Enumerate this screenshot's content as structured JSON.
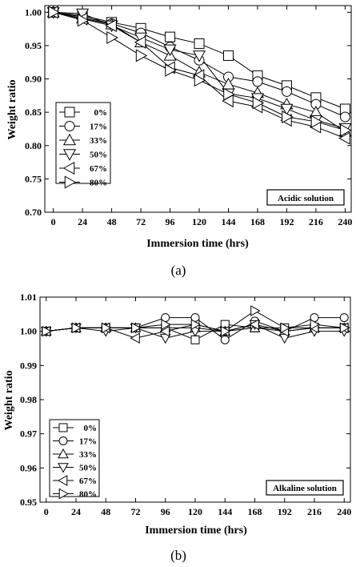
{
  "chart_data": [
    {
      "type": "line",
      "caption": "(a)",
      "xlabel": "Immersion time (hrs)",
      "ylabel": "Weight ratio",
      "annotation": "Acidic solution",
      "legend_placement": "bottom-left",
      "grid": false,
      "xlim": [
        -7,
        245
      ],
      "ylim": [
        0.7,
        1.01
      ],
      "xticks": [
        "0",
        "24",
        "48",
        "72",
        "96",
        "120",
        "144",
        "168",
        "192",
        "216",
        "240"
      ],
      "yticks": [
        "0.70",
        "0.75",
        "0.80",
        "0.85",
        "0.90",
        "0.95",
        "1.00"
      ],
      "x": [
        0,
        24,
        48,
        72,
        96,
        120,
        144,
        168,
        192,
        216,
        240
      ],
      "series": [
        {
          "name": "0%",
          "marker": "square",
          "values": [
            1.0,
            0.995,
            0.985,
            0.976,
            0.963,
            0.953,
            0.935,
            0.905,
            0.89,
            0.872,
            0.855
          ]
        },
        {
          "name": "17%",
          "marker": "circle",
          "values": [
            1.0,
            0.993,
            0.983,
            0.969,
            0.948,
            0.928,
            0.903,
            0.896,
            0.881,
            0.862,
            0.843
          ]
        },
        {
          "name": "33%",
          "marker": "triangle-up",
          "values": [
            1.0,
            0.991,
            0.982,
            0.955,
            0.935,
            0.91,
            0.892,
            0.879,
            0.862,
            0.85,
            0.821
          ]
        },
        {
          "name": "50%",
          "marker": "triangle-down",
          "values": [
            1.0,
            0.998,
            0.98,
            0.962,
            0.944,
            0.935,
            0.878,
            0.871,
            0.855,
            0.838,
            0.826
          ]
        },
        {
          "name": "67%",
          "marker": "triangle-left",
          "values": [
            1.0,
            0.99,
            0.98,
            0.955,
            0.917,
            0.905,
            0.867,
            0.858,
            0.838,
            0.828,
            0.811
          ]
        },
        {
          "name": "80%",
          "marker": "triangle-right",
          "values": [
            1.0,
            0.988,
            0.962,
            0.935,
            0.913,
            0.898,
            0.877,
            0.864,
            0.843,
            0.836,
            0.823
          ]
        }
      ]
    },
    {
      "type": "line",
      "caption": "(b)",
      "xlabel": "Immersion time (hrs)",
      "ylabel": "Weight ratio",
      "annotation": "Alkaline solution",
      "legend_placement": "bottom-left",
      "grid": false,
      "xlim": [
        -5,
        245
      ],
      "ylim": [
        0.95,
        1.01
      ],
      "xticks": [
        "0",
        "24",
        "48",
        "72",
        "96",
        "120",
        "144",
        "168",
        "192",
        "216",
        "240"
      ],
      "yticks": [
        "0.95",
        "0.96",
        "0.97",
        "0.98",
        "0.99",
        "1.00",
        "1.01"
      ],
      "x": [
        0,
        24,
        48,
        72,
        96,
        120,
        144,
        168,
        192,
        216,
        240
      ],
      "series": [
        {
          "name": "0%",
          "marker": "square",
          "values": [
            1.0,
            1.001,
            1.001,
            1.001,
            1.001,
            0.9975,
            1.002,
            1.001,
            1.001,
            1.001,
            1.001
          ]
        },
        {
          "name": "17%",
          "marker": "circle",
          "values": [
            1.0,
            1.001,
            1.001,
            1.001,
            1.004,
            1.004,
            0.9975,
            1.003,
            1.0,
            1.004,
            1.004
          ]
        },
        {
          "name": "33%",
          "marker": "triangle-up",
          "values": [
            1.0,
            1.001,
            1.001,
            1.001,
            1.001,
            1.001,
            1.0,
            1.001,
            1.0,
            1.001,
            1.001
          ]
        },
        {
          "name": "50%",
          "marker": "triangle-down",
          "values": [
            1.0,
            1.001,
            1.0,
            1.001,
            0.998,
            1.0,
            1.0,
            1.002,
            0.998,
            1.0,
            1.0
          ]
        },
        {
          "name": "67%",
          "marker": "triangle-left",
          "values": [
            1.0,
            1.001,
            1.001,
            0.998,
            1.0,
            1.002,
            1.0,
            1.002,
            1.0,
            1.001,
            1.001
          ]
        },
        {
          "name": "80%",
          "marker": "triangle-right",
          "values": [
            1.0,
            1.001,
            1.001,
            1.001,
            1.002,
            1.002,
            1.0,
            1.006,
            1.001,
            1.002,
            1.001
          ]
        }
      ]
    }
  ]
}
